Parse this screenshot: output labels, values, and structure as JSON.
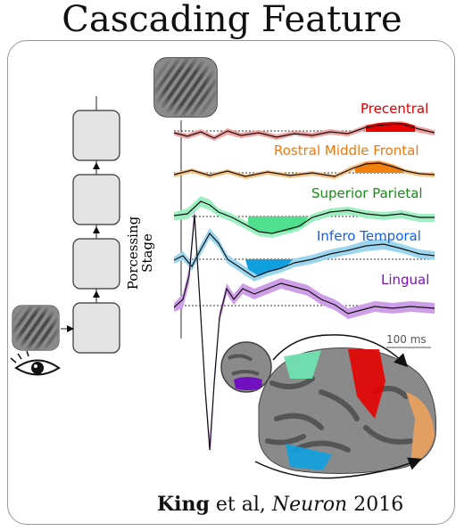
{
  "title": "Cascading Feature",
  "y_axis_label_line1": "Porcessing",
  "y_axis_label_line2": "Stage",
  "scale_bar_label": "100 ms",
  "citation": {
    "author": "King",
    "middle": " et al, ",
    "journal": "Neuron",
    "year": " 2016"
  },
  "regions": [
    {
      "name": "Precentral",
      "color": "#e00000"
    },
    {
      "name": "Rostral Middle Frontal",
      "color": "#f07810"
    },
    {
      "name": "Superior Parietal",
      "color": "#1a8a1a"
    },
    {
      "name": "Infero Temporal",
      "color": "#1060f0"
    },
    {
      "name": "Lingual",
      "color": "#8010c0"
    }
  ],
  "icons": [
    "grating-stimulus-icon",
    "eye-icon",
    "brain-icon"
  ]
}
